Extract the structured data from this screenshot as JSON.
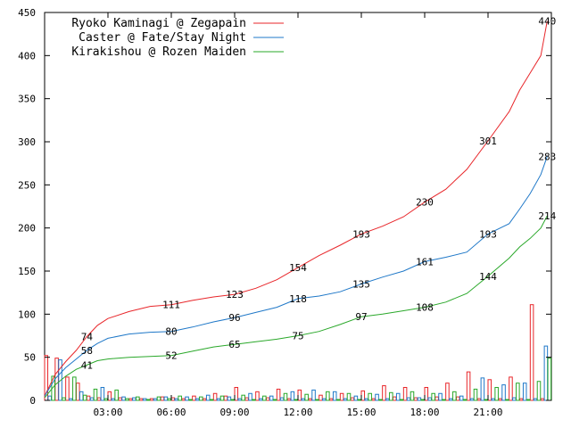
{
  "chart_data": {
    "type": "line",
    "title": "",
    "xlabel": "",
    "ylabel": "",
    "ylim": [
      0,
      450
    ],
    "xlim_hours": [
      0,
      24
    ],
    "grid": false,
    "legend_placement": "top-left",
    "y_ticks": [
      "0",
      "50",
      "100",
      "150",
      "200",
      "250",
      "300",
      "350",
      "400",
      "450"
    ],
    "x_ticks": [
      {
        "label": "03:00",
        "hour": 3
      },
      {
        "label": "06:00",
        "hour": 6
      },
      {
        "label": "09:00",
        "hour": 9
      },
      {
        "label": "12:00",
        "hour": 12
      },
      {
        "label": "15:00",
        "hour": 15
      },
      {
        "label": "18:00",
        "hour": 18
      },
      {
        "label": "21:00",
        "hour": 21
      }
    ],
    "series": [
      {
        "name": "Ryoko Kaminagi @ Zegapain",
        "color": "#e8262a",
        "x": [
          0,
          0.5,
          1,
          1.5,
          2,
          2.5,
          3,
          4,
          5,
          6,
          7,
          8,
          9,
          10,
          11,
          12,
          13,
          14,
          15,
          16,
          17,
          18,
          19,
          20,
          21,
          22,
          22.5,
          23,
          23.5,
          23.8
        ],
        "y": [
          5,
          30,
          45,
          58,
          74,
          87,
          95,
          103,
          109,
          111,
          116,
          120,
          123,
          130,
          140,
          154,
          168,
          180,
          193,
          202,
          213,
          230,
          245,
          268,
          301,
          335,
          360,
          380,
          400,
          440
        ],
        "point_labels": [
          {
            "hour": 2,
            "value": "74"
          },
          {
            "hour": 6,
            "value": "111"
          },
          {
            "hour": 9,
            "value": "123"
          },
          {
            "hour": 12,
            "value": "154"
          },
          {
            "hour": 15,
            "value": "193"
          },
          {
            "hour": 18,
            "value": "230"
          },
          {
            "hour": 21,
            "value": "301"
          },
          {
            "hour": 23.8,
            "value": "440"
          }
        ],
        "bars": [
          52,
          49,
          27,
          20,
          5,
          3,
          10,
          3,
          2,
          2,
          2,
          4,
          3,
          2,
          5,
          2,
          8,
          5,
          15,
          3,
          10,
          3,
          13,
          2,
          12,
          2,
          6,
          2,
          8,
          3,
          11,
          2,
          17,
          4,
          15,
          3,
          15,
          4,
          20,
          4,
          33,
          2,
          24,
          2,
          27,
          2,
          111,
          2
        ]
      },
      {
        "name": "Caster @ Fate/Stay Night",
        "color": "#1f78c8",
        "x": [
          0,
          0.5,
          1,
          1.5,
          2,
          2.5,
          3,
          4,
          5,
          6,
          7,
          8,
          9,
          10,
          11,
          12,
          13,
          14,
          15,
          16,
          17,
          18,
          19,
          20,
          21,
          22,
          22.5,
          23,
          23.5,
          23.8
        ],
        "y": [
          5,
          25,
          38,
          48,
          58,
          66,
          72,
          77,
          79,
          80,
          85,
          91,
          96,
          102,
          108,
          118,
          121,
          126,
          135,
          143,
          150,
          161,
          166,
          172,
          193,
          205,
          222,
          240,
          262,
          283
        ],
        "point_labels": [
          {
            "hour": 2,
            "value": "58"
          },
          {
            "hour": 6,
            "value": "80"
          },
          {
            "hour": 9,
            "value": "96"
          },
          {
            "hour": 12,
            "value": "118"
          },
          {
            "hour": 15,
            "value": "135"
          },
          {
            "hour": 18,
            "value": "161"
          },
          {
            "hour": 21,
            "value": "193"
          },
          {
            "hour": 23.8,
            "value": "283"
          }
        ],
        "bars": [
          5,
          47,
          2,
          10,
          3,
          15,
          2,
          4,
          3,
          2,
          2,
          4,
          2,
          4,
          2,
          6,
          2,
          4,
          2,
          8,
          2,
          5,
          3,
          10,
          2,
          12,
          2,
          10,
          2,
          5,
          2,
          7,
          2,
          8,
          3,
          3,
          3,
          8,
          2,
          5,
          2,
          26,
          2,
          18,
          3,
          20,
          2,
          63
        ]
      },
      {
        "name": "Kirakishou @ Rozen Maiden",
        "color": "#2aa82a",
        "x": [
          0,
          0.5,
          1,
          1.5,
          2,
          2.5,
          3,
          4,
          5,
          6,
          7,
          8,
          9,
          10,
          11,
          12,
          13,
          14,
          15,
          16,
          17,
          18,
          19,
          20,
          21,
          22,
          22.5,
          23,
          23.5,
          23.8
        ],
        "y": [
          3,
          18,
          28,
          36,
          41,
          46,
          48,
          50,
          51,
          52,
          57,
          62,
          65,
          68,
          71,
          75,
          80,
          88,
          97,
          100,
          104,
          108,
          114,
          124,
          144,
          165,
          178,
          188,
          200,
          214
        ],
        "point_labels": [
          {
            "hour": 2,
            "value": "41"
          },
          {
            "hour": 6,
            "value": "52"
          },
          {
            "hour": 9,
            "value": "65"
          },
          {
            "hour": 12,
            "value": "75"
          },
          {
            "hour": 15,
            "value": "97"
          },
          {
            "hour": 18,
            "value": "108"
          },
          {
            "hour": 21,
            "value": "144"
          },
          {
            "hour": 23.8,
            "value": "214"
          }
        ],
        "bars": [
          28,
          3,
          27,
          6,
          13,
          2,
          12,
          2,
          4,
          1,
          4,
          2,
          5,
          1,
          4,
          1,
          5,
          1,
          6,
          1,
          5,
          1,
          8,
          1,
          7,
          1,
          10,
          1,
          8,
          1,
          8,
          1,
          9,
          1,
          10,
          1,
          8,
          1,
          10,
          1,
          13,
          1,
          15,
          1,
          20,
          1,
          22,
          49
        ]
      }
    ]
  }
}
